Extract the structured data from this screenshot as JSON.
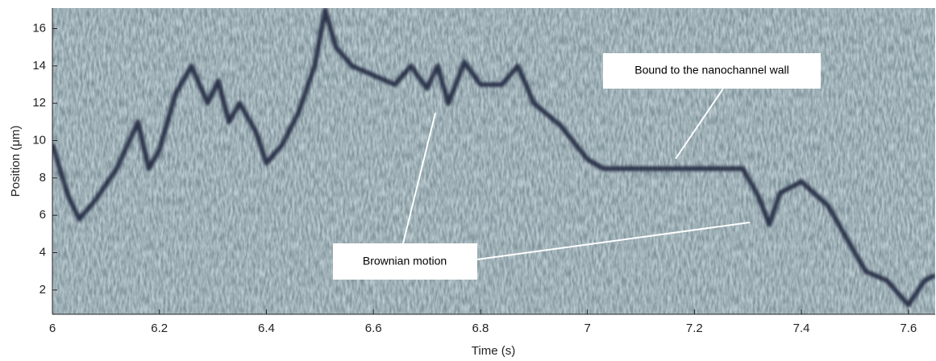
{
  "chart_data": {
    "type": "line",
    "x_label": "Time (s)",
    "y_label": "Position (μm)",
    "xlim": [
      6,
      7.65
    ],
    "ylim": [
      0.7,
      17.1
    ],
    "xticks": [
      6,
      6.2,
      6.4,
      6.6,
      6.8,
      7,
      7.2,
      7.4,
      7.6
    ],
    "yticks": [
      2,
      4,
      6,
      8,
      10,
      12,
      14,
      16
    ],
    "annotations": [
      "Bound to the nanochannel wall",
      "Brownian motion"
    ],
    "series": [
      {
        "color": "#1b1e38",
        "x": [
          6.0,
          6.03,
          6.05,
          6.08,
          6.12,
          6.16,
          6.18,
          6.2,
          6.23,
          6.26,
          6.29,
          6.31,
          6.33,
          6.35,
          6.38,
          6.4,
          6.43,
          6.46,
          6.49,
          6.51,
          6.53,
          6.56,
          6.6,
          6.64,
          6.67,
          6.7,
          6.72,
          6.74,
          6.77,
          6.8,
          6.84,
          6.87,
          6.9,
          6.95,
          7.0,
          7.03,
          7.1,
          7.2,
          7.29,
          7.32,
          7.34,
          7.36,
          7.4,
          7.45,
          7.48,
          7.52,
          7.56,
          7.6,
          7.63,
          7.65
        ],
        "values": [
          9.8,
          7,
          5.8,
          6.8,
          8.5,
          11,
          8.5,
          9.5,
          12.5,
          14,
          12,
          13.2,
          11,
          12,
          10.5,
          8.8,
          9.8,
          11.5,
          14,
          17,
          15,
          14,
          13.5,
          13,
          14,
          12.8,
          14,
          12,
          14.2,
          13,
          13,
          14,
          12,
          10.8,
          9,
          8.5,
          8.5,
          8.5,
          8.5,
          7,
          5.5,
          7.2,
          7.8,
          6.5,
          5,
          3,
          2.5,
          1.2,
          2.5,
          2.8
        ]
      }
    ]
  }
}
